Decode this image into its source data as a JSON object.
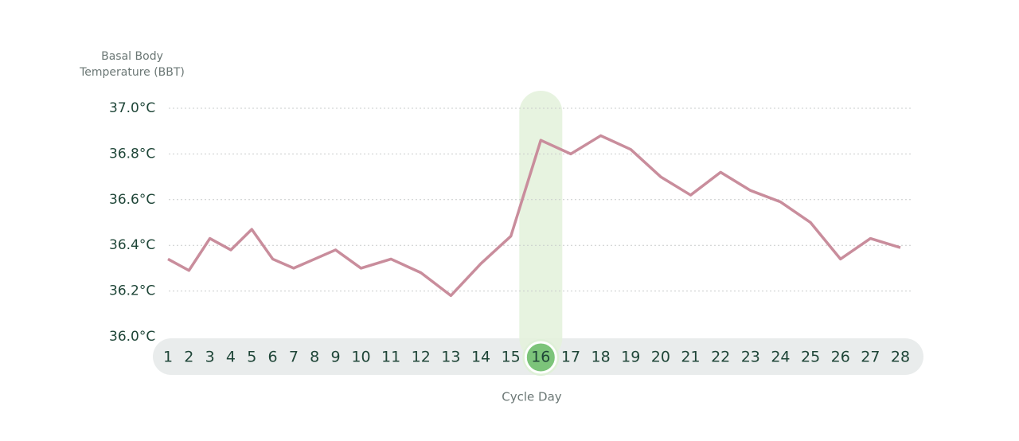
{
  "chart_data": {
    "type": "line",
    "y_axis_label": "Basal Body Temperature (BBT)",
    "x_axis_label": "Cycle Day",
    "categories": [
      1,
      2,
      3,
      4,
      5,
      6,
      7,
      8,
      9,
      10,
      11,
      12,
      13,
      14,
      15,
      16,
      17,
      18,
      19,
      20,
      21,
      22,
      23,
      24,
      25,
      26,
      27,
      28
    ],
    "series": [
      {
        "name": "BBT",
        "color": "#c98d9c",
        "values": [
          36.34,
          36.29,
          36.43,
          36.38,
          36.47,
          36.34,
          36.3,
          36.34,
          36.38,
          36.3,
          36.34,
          36.28,
          36.18,
          36.32,
          36.44,
          36.86,
          36.8,
          36.88,
          36.82,
          36.7,
          36.62,
          36.72,
          36.64,
          36.59,
          36.5,
          36.34,
          36.43,
          36.39
        ]
      }
    ],
    "ylim": [
      36.0,
      37.0
    ],
    "yticks": [
      {
        "value": 36.0,
        "label": "36.0°C"
      },
      {
        "value": 36.2,
        "label": "36.2°C"
      },
      {
        "value": 36.4,
        "label": "36.4°C"
      },
      {
        "value": 36.6,
        "label": "36.6°C"
      },
      {
        "value": 36.8,
        "label": "36.8°C"
      },
      {
        "value": 37.0,
        "label": "37.0°C"
      }
    ],
    "grid": true,
    "highlight_category": 16,
    "highlight_color": "#7cc47a"
  }
}
